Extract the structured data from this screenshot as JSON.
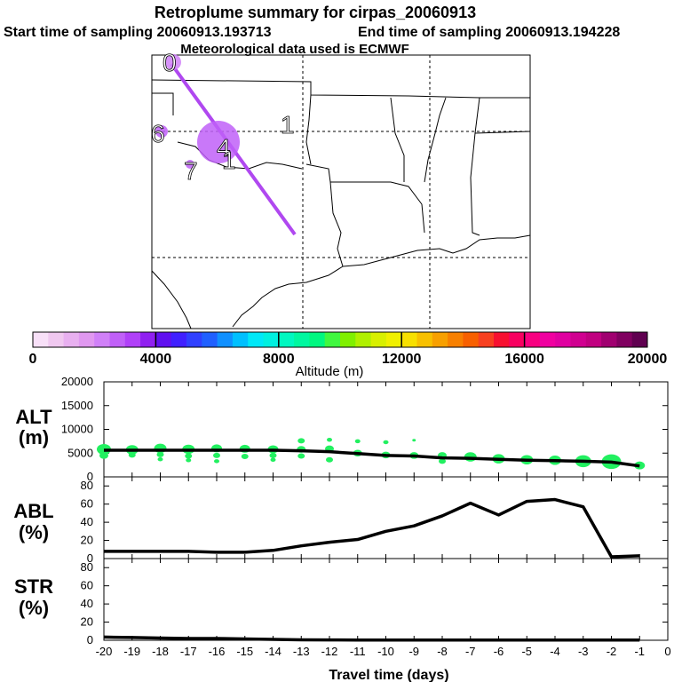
{
  "header": {
    "title": "Retroplume summary for cirpas_20060913",
    "start_label": "Start time of sampling 20060913.193713",
    "end_label": "End time of sampling 20060913.194228",
    "met_label": "Meteorological data used is ECMWF"
  },
  "map": {
    "plume_day_labels": [
      "0",
      "6",
      "1",
      "4",
      "7",
      "1"
    ],
    "plume_color": "#b048f0"
  },
  "colorbar": {
    "tick_labels": [
      "0",
      "4000",
      "8000",
      "12000",
      "16000",
      "20000"
    ],
    "tick_values": [
      0,
      4000,
      8000,
      12000,
      16000,
      20000
    ],
    "label": "Altitude (m)",
    "colors": [
      "#f8e0f8",
      "#f0c8f0",
      "#e8b0f0",
      "#e098f0",
      "#d080f8",
      "#c060f8",
      "#b040f8",
      "#9020f0",
      "#6010f0",
      "#4020ff",
      "#3040ff",
      "#2060ff",
      "#1090ff",
      "#00c0ff",
      "#00e8f8",
      "#00f0e0",
      "#00f8c0",
      "#00f8a0",
      "#00f880",
      "#40f840",
      "#80f000",
      "#b0f000",
      "#d8f000",
      "#f0f000",
      "#f8e000",
      "#f8c000",
      "#f8a000",
      "#f88000",
      "#f86000",
      "#f84020",
      "#f81030",
      "#f80060",
      "#f80080",
      "#f000a0",
      "#e000a0",
      "#d00090",
      "#c00080",
      "#a00070",
      "#800060",
      "#600050"
    ]
  },
  "panels": {
    "alt": {
      "label_line1": "ALT",
      "label_line2": "(m)"
    },
    "abl": {
      "label_line1": "ABL",
      "label_line2": "(%)"
    },
    "str": {
      "label_line1": "STR",
      "label_line2": "(%)"
    }
  },
  "chart_data": [
    {
      "type": "line",
      "title": "ALT (m)",
      "x": [
        -20,
        -19,
        -18,
        -17,
        -16,
        -15,
        -14,
        -13,
        -12,
        -11,
        -10,
        -9,
        -8,
        -7,
        -6,
        -5,
        -4,
        -3,
        -2,
        -1
      ],
      "values": [
        5600,
        5600,
        5600,
        5600,
        5600,
        5600,
        5600,
        5500,
        5300,
        4900,
        4500,
        4400,
        4000,
        3900,
        3700,
        3500,
        3400,
        3300,
        3100,
        2300
      ],
      "ylim": [
        0,
        20000
      ],
      "y_ticks": [
        0,
        5000,
        10000,
        15000,
        20000
      ],
      "xlim": [
        -20,
        0
      ],
      "scatter_color": "#22f060",
      "scatter": [
        {
          "x": -20,
          "y": 5800,
          "r": 8
        },
        {
          "x": -20,
          "y": 4500,
          "r": 5
        },
        {
          "x": -19,
          "y": 5700,
          "r": 7
        },
        {
          "x": -19,
          "y": 4600,
          "r": 4
        },
        {
          "x": -18,
          "y": 6000,
          "r": 7
        },
        {
          "x": -18,
          "y": 4700,
          "r": 4
        },
        {
          "x": -18,
          "y": 3700,
          "r": 3
        },
        {
          "x": -17,
          "y": 5800,
          "r": 7
        },
        {
          "x": -17,
          "y": 4400,
          "r": 4
        },
        {
          "x": -17,
          "y": 3500,
          "r": 3
        },
        {
          "x": -16,
          "y": 6000,
          "r": 6
        },
        {
          "x": -16,
          "y": 4500,
          "r": 4
        },
        {
          "x": -16,
          "y": 3300,
          "r": 3
        },
        {
          "x": -15,
          "y": 5900,
          "r": 6
        },
        {
          "x": -15,
          "y": 4300,
          "r": 4
        },
        {
          "x": -14,
          "y": 5800,
          "r": 6
        },
        {
          "x": -14,
          "y": 4500,
          "r": 4
        },
        {
          "x": -14,
          "y": 3600,
          "r": 3
        },
        {
          "x": -13,
          "y": 7600,
          "r": 4
        },
        {
          "x": -13,
          "y": 5800,
          "r": 5
        },
        {
          "x": -13,
          "y": 4400,
          "r": 4
        },
        {
          "x": -12,
          "y": 7800,
          "r": 3
        },
        {
          "x": -12,
          "y": 5900,
          "r": 5
        },
        {
          "x": -12,
          "y": 3600,
          "r": 4
        },
        {
          "x": -11,
          "y": 7500,
          "r": 3
        },
        {
          "x": -11,
          "y": 5000,
          "r": 5
        },
        {
          "x": -10,
          "y": 7300,
          "r": 3
        },
        {
          "x": -10,
          "y": 4600,
          "r": 5
        },
        {
          "x": -9,
          "y": 7700,
          "r": 2
        },
        {
          "x": -9,
          "y": 4500,
          "r": 5
        },
        {
          "x": -8,
          "y": 4500,
          "r": 5
        },
        {
          "x": -8,
          "y": 3300,
          "r": 4
        },
        {
          "x": -7,
          "y": 4200,
          "r": 7
        },
        {
          "x": -6,
          "y": 3800,
          "r": 7
        },
        {
          "x": -5,
          "y": 3600,
          "r": 7
        },
        {
          "x": -4,
          "y": 3500,
          "r": 7
        },
        {
          "x": -3,
          "y": 3300,
          "r": 9
        },
        {
          "x": -2,
          "y": 3200,
          "r": 11
        },
        {
          "x": -1,
          "y": 2400,
          "r": 6
        }
      ]
    },
    {
      "type": "line",
      "title": "ABL (%)",
      "x": [
        -20,
        -19,
        -18,
        -17,
        -16,
        -15,
        -14,
        -13,
        -12,
        -11,
        -10,
        -9,
        -8,
        -7,
        -6,
        -5,
        -4,
        -3,
        -2,
        -1
      ],
      "values": [
        8,
        8,
        8,
        8,
        7,
        7,
        9,
        14,
        18,
        21,
        30,
        36,
        47,
        61,
        48,
        63,
        65,
        57,
        2,
        3
      ],
      "ylim": [
        0,
        90
      ],
      "y_ticks": [
        0,
        20,
        40,
        60,
        80
      ],
      "xlim": [
        -20,
        0
      ]
    },
    {
      "type": "line",
      "title": "STR (%)",
      "x": [
        -20,
        -19,
        -18,
        -17,
        -16,
        -15,
        -14,
        -13,
        -12,
        -11,
        -10,
        -9,
        -8,
        -7,
        -6,
        -5,
        -4,
        -3,
        -2,
        -1
      ],
      "values": [
        3.5,
        3,
        2.5,
        2,
        2,
        1.5,
        1,
        0.5,
        0.4,
        0.3,
        0.3,
        0.2,
        0.2,
        0.2,
        0.2,
        0.2,
        0.2,
        0.2,
        0.2,
        0.2
      ],
      "ylim": [
        0,
        90
      ],
      "y_ticks": [
        0,
        20,
        40,
        60,
        80
      ],
      "xlim": [
        -20,
        0
      ],
      "xlabel": "Travel time (days)",
      "x_ticks": [
        -20,
        -19,
        -18,
        -17,
        -16,
        -15,
        -14,
        -13,
        -12,
        -11,
        -10,
        -9,
        -8,
        -7,
        -6,
        -5,
        -4,
        -3,
        -2,
        -1,
        0
      ]
    }
  ]
}
